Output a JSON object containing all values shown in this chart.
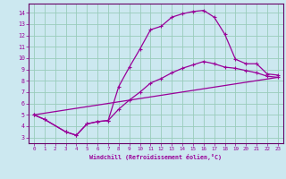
{
  "bg_color": "#cce8f0",
  "grid_color": "#99ccbb",
  "line_color": "#990099",
  "spine_color": "#660066",
  "xlim": [
    -0.5,
    23.5
  ],
  "ylim": [
    2.5,
    14.8
  ],
  "xticks": [
    0,
    1,
    2,
    3,
    4,
    5,
    6,
    7,
    8,
    9,
    10,
    11,
    12,
    13,
    14,
    15,
    16,
    17,
    18,
    19,
    20,
    21,
    22,
    23
  ],
  "yticks": [
    3,
    4,
    5,
    6,
    7,
    8,
    9,
    10,
    11,
    12,
    13,
    14
  ],
  "line1_x": [
    0,
    1,
    3,
    4,
    5,
    6,
    7,
    8,
    9,
    10,
    11,
    12,
    13,
    14,
    15,
    16,
    17,
    18,
    19,
    20,
    21,
    22,
    23
  ],
  "line1_y": [
    5.0,
    4.6,
    3.5,
    3.2,
    4.2,
    4.4,
    4.5,
    7.5,
    9.2,
    10.8,
    12.5,
    12.8,
    13.6,
    13.9,
    14.1,
    14.2,
    13.6,
    12.1,
    9.9,
    9.5,
    9.5,
    8.6,
    8.5
  ],
  "line2_x": [
    0,
    1,
    3,
    4,
    5,
    6,
    7,
    8,
    9,
    10,
    11,
    12,
    13,
    14,
    15,
    16,
    17,
    18,
    19,
    20,
    21,
    22,
    23
  ],
  "line2_y": [
    5.0,
    4.6,
    3.5,
    3.2,
    4.2,
    4.4,
    4.5,
    5.5,
    6.3,
    7.0,
    7.8,
    8.2,
    8.7,
    9.1,
    9.4,
    9.7,
    9.5,
    9.2,
    9.1,
    8.9,
    8.7,
    8.4,
    8.3
  ],
  "line3_x": [
    0,
    23
  ],
  "line3_y": [
    5.0,
    8.3
  ],
  "xlabel": "Windchill (Refroidissement éolien,°C)"
}
